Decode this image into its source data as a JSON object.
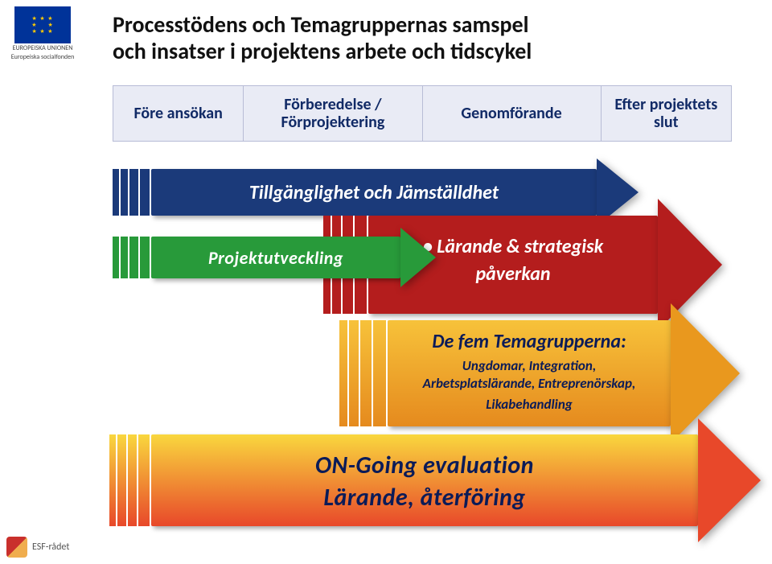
{
  "title_line1": "Processtödens och Temagruppernas samspel",
  "title_line2": "och insatser i projektens arbete och tidscykel",
  "phases": [
    "Före ansökan",
    "Förberedelse / Förprojektering",
    "Genomförande",
    "Efter projektets slut"
  ],
  "bands": {
    "blue": {
      "label": "Tillgänglighet och Jämställdhet",
      "bg": "#1b3a7a",
      "text_color": "#ffffff"
    },
    "green": {
      "label": "Projektutveckling",
      "bg": "#289a3a",
      "text_color": "#ffffff"
    },
    "red": {
      "bullet": "•",
      "line1": "Lärande & strategisk",
      "line2": "påverkan",
      "bg": "#b41d1d",
      "text_color": "#ffffff"
    },
    "orange": {
      "headline": "De fem Temagrupperna:",
      "body1": "Ungdomar, Integration,",
      "body2": "Arbetsplatslärande, Entreprenörskap,",
      "body3": "Likabehandling",
      "text_color": "#0b1b58"
    },
    "gradient": {
      "line1": "ON-Going evaluation",
      "line2": "Lärande, återföring",
      "text_color": "#0b1b58"
    }
  },
  "eu": {
    "label1": "EUROPEISKA UNIONEN",
    "label2": "Europeiska socialfonden"
  },
  "esf": {
    "label": "ESF-rådet"
  },
  "colors": {
    "phase_bg": "#e9ebf5",
    "phase_border": "#b8bcd6",
    "phase_text": "#112a66"
  }
}
